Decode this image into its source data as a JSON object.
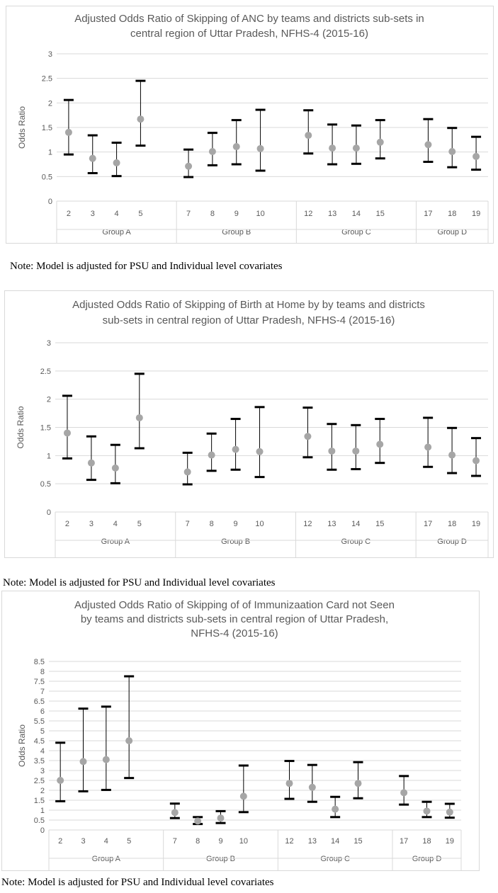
{
  "chart_data": [
    {
      "type": "errorbar",
      "title_lines": [
        "Adjusted Odds Ratio of Skipping of ANC by teams and districts sub-sets in",
        "central  region of Uttar Pradesh, NFHS-4 (2015-16)"
      ],
      "ylabel": "Odds Ratio",
      "ylim": [
        0,
        3
      ],
      "yticks": [
        "0",
        "0.5",
        "1",
        "1.5",
        "2",
        "2.5",
        "3"
      ],
      "grid": true,
      "groups": [
        {
          "name": "Group  A",
          "categories": [
            "2",
            "3",
            "4",
            "5"
          ]
        },
        {
          "name": "Group B",
          "categories": [
            "7",
            "8",
            "9",
            "10"
          ]
        },
        {
          "name": "Group C",
          "categories": [
            "12",
            "13",
            "14",
            "15"
          ]
        },
        {
          "name": "Group D",
          "categories": [
            "17",
            "18",
            "19"
          ]
        }
      ],
      "points": [
        1.4,
        0.87,
        0.78,
        1.67,
        0.71,
        1.01,
        1.11,
        1.07,
        1.34,
        1.08,
        1.08,
        1.2,
        1.15,
        1.01,
        0.91
      ],
      "lower": [
        0.95,
        0.57,
        0.51,
        1.13,
        0.49,
        0.73,
        0.75,
        0.62,
        0.97,
        0.75,
        0.76,
        0.87,
        0.8,
        0.69,
        0.64
      ],
      "upper": [
        2.06,
        1.34,
        1.19,
        2.45,
        1.05,
        1.39,
        1.65,
        1.86,
        1.85,
        1.56,
        1.54,
        1.65,
        1.67,
        1.49,
        1.31
      ]
    },
    {
      "type": "errorbar",
      "title_lines": [
        "Adjusted Odds Ratio of Skipping of Birth at Home by by teams and districts",
        "sub-sets in central region of Uttar Pradesh, NFHS-4 (2015-16)"
      ],
      "ylabel": "Odds Ratio",
      "ylim": [
        0,
        3
      ],
      "yticks": [
        "0",
        "0.5",
        "1",
        "1.5",
        "2",
        "2.5",
        "3"
      ],
      "grid": true,
      "groups": [
        {
          "name": "Group  A",
          "categories": [
            "2",
            "3",
            "4",
            "5"
          ]
        },
        {
          "name": "Group B",
          "categories": [
            "7",
            "8",
            "9",
            "10"
          ]
        },
        {
          "name": "Group C",
          "categories": [
            "12",
            "13",
            "14",
            "15"
          ]
        },
        {
          "name": "Group D",
          "categories": [
            "17",
            "18",
            "19"
          ]
        }
      ],
      "points": [
        1.4,
        0.87,
        0.78,
        1.67,
        0.71,
        1.01,
        1.11,
        1.07,
        1.34,
        1.08,
        1.08,
        1.2,
        1.15,
        1.01,
        0.91
      ],
      "lower": [
        0.95,
        0.57,
        0.51,
        1.13,
        0.49,
        0.73,
        0.75,
        0.62,
        0.97,
        0.75,
        0.76,
        0.87,
        0.8,
        0.69,
        0.64
      ],
      "upper": [
        2.06,
        1.34,
        1.19,
        2.45,
        1.05,
        1.39,
        1.65,
        1.86,
        1.85,
        1.56,
        1.54,
        1.65,
        1.67,
        1.49,
        1.31
      ]
    },
    {
      "type": "errorbar",
      "title_lines": [
        "Adjusted Odds Ratio of Skipping of of Immunizaation Card not Seen",
        "by teams and districts sub-sets in central region of Uttar Pradesh,",
        "NFHS-4 (2015-16)"
      ],
      "ylabel": "Odds Ratio",
      "ylim": [
        0,
        8.5
      ],
      "yticks": [
        "0",
        "0.5",
        "1",
        "1.5",
        "2",
        "2.5",
        "3",
        "3.5",
        "4",
        "4.5",
        "5",
        "5.5",
        "6",
        "6.5",
        "7",
        "7.5",
        "8",
        "8.5"
      ],
      "grid": true,
      "groups": [
        {
          "name": "Group  A",
          "categories": [
            "2",
            "3",
            "4",
            "5"
          ]
        },
        {
          "name": "Group B",
          "categories": [
            "7",
            "8",
            "9",
            "10"
          ]
        },
        {
          "name": "Group C",
          "categories": [
            "12",
            "13",
            "14",
            "15"
          ]
        },
        {
          "name": "Group D",
          "categories": [
            "17",
            "18",
            "19"
          ]
        }
      ],
      "points": [
        2.5,
        3.45,
        3.55,
        4.5,
        0.88,
        0.45,
        0.6,
        1.7,
        2.35,
        2.15,
        1.05,
        2.35,
        1.88,
        0.95,
        0.9
      ],
      "lower": [
        1.45,
        1.95,
        2.02,
        2.62,
        0.6,
        0.3,
        0.35,
        0.9,
        1.57,
        1.42,
        0.65,
        1.6,
        1.28,
        0.65,
        0.62
      ],
      "upper": [
        4.4,
        6.12,
        6.22,
        7.75,
        1.33,
        0.65,
        0.95,
        3.25,
        3.48,
        3.28,
        1.67,
        3.42,
        2.72,
        1.42,
        1.32
      ]
    }
  ],
  "notes": [
    "Note: Model is adjusted for PSU and Individual level covariates",
    "Note: Model is adjusted for PSU and Individual level covariates",
    "Note: Model is adjusted for PSU and Individual level covariates"
  ]
}
